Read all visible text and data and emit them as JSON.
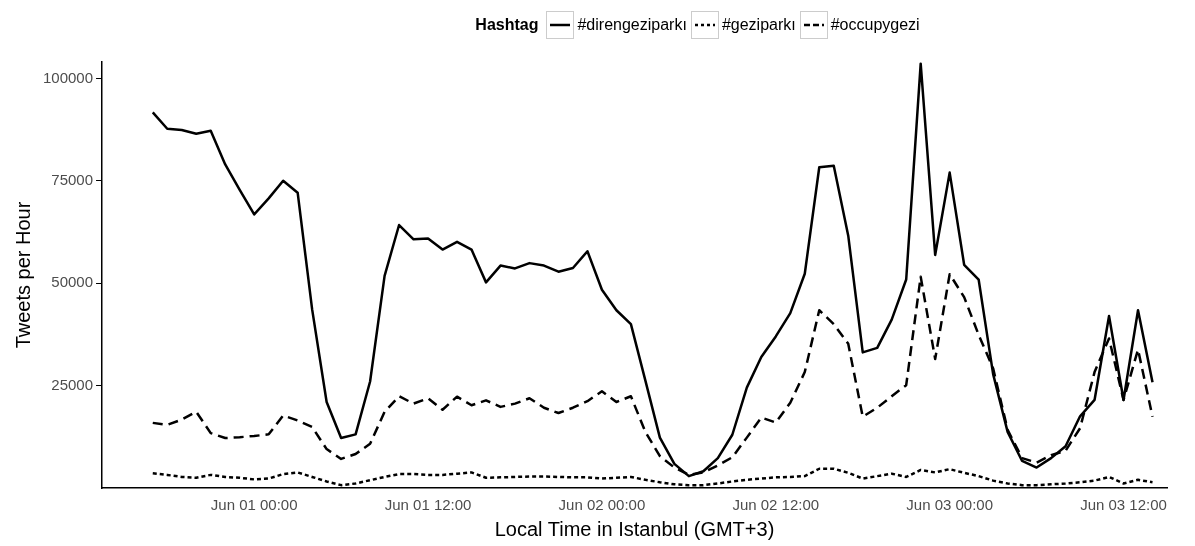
{
  "chart_data": {
    "type": "line",
    "xlabel": "Local Time in Istanbul (GMT+3)",
    "ylabel": "Tweets per Hour",
    "legend_title": "Hashtag",
    "legend": "top",
    "grid": false,
    "marker": "none",
    "x": [
      "--05-31T17:00",
      "--05-31T18:00",
      "--05-31T19:00",
      "--05-31T20:00",
      "--05-31T21:00",
      "--05-31T22:00",
      "--05-31T23:00",
      "--06-01T00:00",
      "--06-01T01:00",
      "--06-01T02:00",
      "--06-01T03:00",
      "--06-01T04:00",
      "--06-01T05:00",
      "--06-01T06:00",
      "--06-01T07:00",
      "--06-01T08:00",
      "--06-01T09:00",
      "--06-01T10:00",
      "--06-01T11:00",
      "--06-01T12:00",
      "--06-01T13:00",
      "--06-01T14:00",
      "--06-01T15:00",
      "--06-01T16:00",
      "--06-01T17:00",
      "--06-01T18:00",
      "--06-01T19:00",
      "--06-01T20:00",
      "--06-01T21:00",
      "--06-01T22:00",
      "--06-01T23:00",
      "--06-02T00:00",
      "--06-02T01:00",
      "--06-02T02:00",
      "--06-02T03:00",
      "--06-02T04:00",
      "--06-02T05:00",
      "--06-02T06:00",
      "--06-02T07:00",
      "--06-02T08:00",
      "--06-02T09:00",
      "--06-02T10:00",
      "--06-02T11:00",
      "--06-02T12:00",
      "--06-02T13:00",
      "--06-02T14:00",
      "--06-02T15:00",
      "--06-02T16:00",
      "--06-02T17:00",
      "--06-02T18:00",
      "--06-02T19:00",
      "--06-02T20:00",
      "--06-02T21:00",
      "--06-02T22:00",
      "--06-02T23:00",
      "--06-03T00:00",
      "--06-03T01:00",
      "--06-03T02:00",
      "--06-03T03:00",
      "--06-03T04:00",
      "--06-03T05:00",
      "--06-03T06:00",
      "--06-03T07:00",
      "--06-03T08:00",
      "--06-03T09:00",
      "--06-03T10:00",
      "--06-03T11:00",
      "--06-03T12:00",
      "--06-03T13:00",
      "--06-03T14:00"
    ],
    "series": [
      {
        "name": "#direngeziparkı",
        "color": "#000000",
        "line_style": "solid",
        "values": [
          91700,
          87700,
          87400,
          86500,
          87200,
          79000,
          72800,
          66800,
          70700,
          75000,
          72100,
          43600,
          21000,
          12200,
          13100,
          26000,
          51800,
          64200,
          60700,
          60900,
          58200,
          60100,
          58200,
          50200,
          54300,
          53600,
          54900,
          54300,
          52800,
          53700,
          57800,
          48400,
          43400,
          40000,
          26200,
          12300,
          5900,
          2900,
          4100,
          7300,
          13000,
          24500,
          32000,
          37000,
          42700,
          52300,
          78300,
          78700,
          61600,
          33100,
          34200,
          41100,
          50900,
          103600,
          56900,
          77000,
          54500,
          50900,
          27800,
          13700,
          6600,
          5000,
          7300,
          10200,
          17500,
          21500,
          42000,
          21500,
          43400,
          25800
        ]
      },
      {
        "name": "#geziparkı",
        "color": "#000000",
        "line_style": "dotted",
        "values": [
          3600,
          3200,
          2700,
          2500,
          3200,
          2700,
          2500,
          2100,
          2300,
          3400,
          3800,
          2700,
          1600,
          700,
          1100,
          1900,
          2700,
          3400,
          3400,
          3200,
          3200,
          3500,
          3800,
          2500,
          2600,
          2700,
          2800,
          2800,
          2700,
          2600,
          2600,
          2300,
          2500,
          2700,
          2000,
          1400,
          900,
          700,
          700,
          1100,
          1600,
          2000,
          2300,
          2600,
          2700,
          2900,
          4700,
          4700,
          3700,
          2300,
          2900,
          3500,
          2700,
          4400,
          3800,
          4600,
          3700,
          2900,
          1800,
          1100,
          700,
          700,
          900,
          1100,
          1400,
          1800,
          2700,
          1100,
          2000,
          1400
        ]
      },
      {
        "name": "#occupygezi",
        "color": "#000000",
        "line_style": "dashed",
        "values": [
          15900,
          15400,
          16700,
          18600,
          13400,
          12200,
          12400,
          12700,
          13100,
          17700,
          16500,
          14900,
          9500,
          7100,
          8300,
          10800,
          18600,
          22400,
          20600,
          21900,
          19100,
          22300,
          20200,
          21400,
          19800,
          20600,
          21900,
          19600,
          18300,
          19600,
          21200,
          23600,
          21000,
          22400,
          13700,
          7800,
          5000,
          3200,
          3800,
          5500,
          7500,
          12300,
          17200,
          16000,
          20800,
          28300,
          43400,
          40000,
          35200,
          17400,
          19600,
          22400,
          25100,
          51600,
          31500,
          52200,
          46600,
          37400,
          29200,
          14200,
          7300,
          6200,
          8000,
          9100,
          14600,
          28300,
          36500,
          21500,
          33800,
          17400
        ]
      }
    ],
    "xlim": [
      "--05-31T13:30",
      "--06-03T15:00"
    ],
    "xticks": [
      {
        "value": "--06-01T00:00",
        "label": "Jun 01 00:00"
      },
      {
        "value": "--06-01T12:00",
        "label": "Jun 01 12:00"
      },
      {
        "value": "--06-02T00:00",
        "label": "Jun 02 00:00"
      },
      {
        "value": "--06-02T12:00",
        "label": "Jun 02 12:00"
      },
      {
        "value": "--06-03T00:00",
        "label": "Jun 03 00:00"
      },
      {
        "value": "--06-03T12:00",
        "label": "Jun 03 12:00"
      }
    ],
    "ylim": [
      0,
      104000
    ],
    "yticks": [
      25000,
      50000,
      75000,
      100000
    ]
  }
}
